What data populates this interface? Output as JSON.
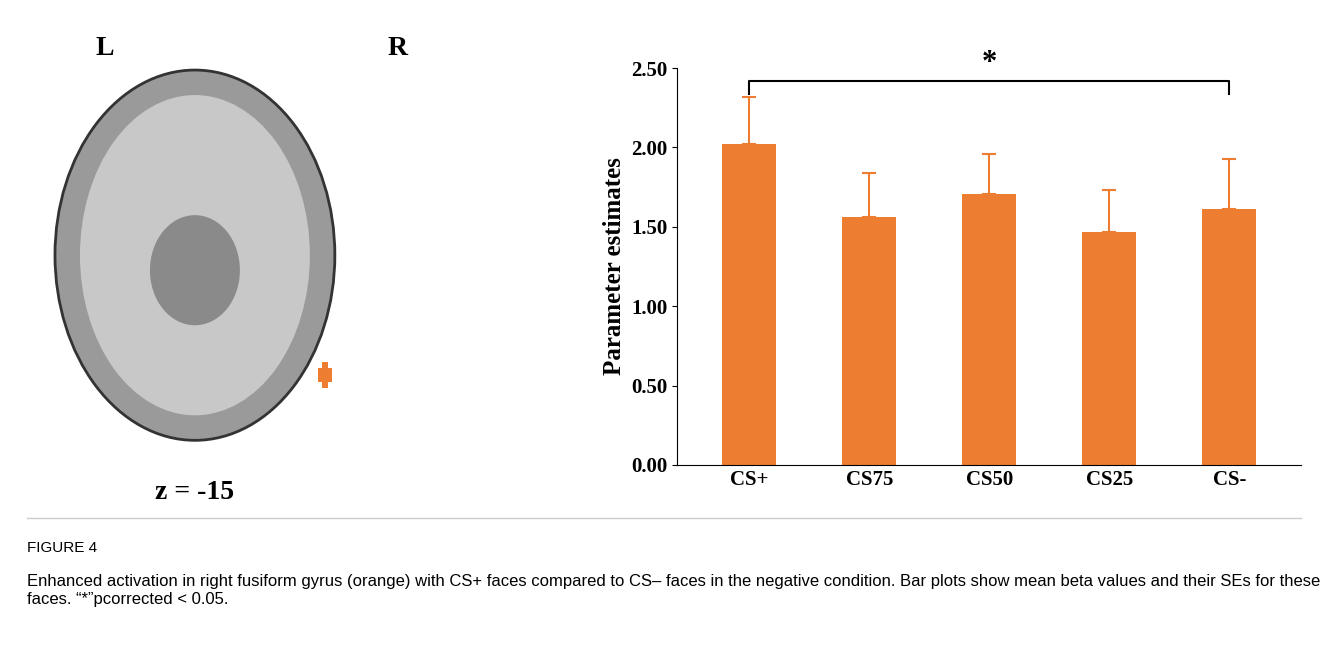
{
  "chart_data": {
    "type": "bar",
    "categories": [
      "CS+",
      "CS75",
      "CS50",
      "CS25",
      "CS-"
    ],
    "values": [
      2.02,
      1.56,
      1.71,
      1.47,
      1.61
    ],
    "errors": [
      0.3,
      0.28,
      0.25,
      0.26,
      0.32
    ],
    "color": "#ED7D31",
    "y_label": "Parameter estimates",
    "ylim": [
      0,
      2.5
    ],
    "yticks": [
      {
        "value": 0,
        "label": "0.00"
      },
      {
        "value": 0.5,
        "label": "0.50"
      },
      {
        "value": 1,
        "label": "1.00"
      },
      {
        "value": 1.5,
        "label": "1.50"
      },
      {
        "value": 2,
        "label": "2.00"
      },
      {
        "value": 2.5,
        "label": "2.50"
      }
    ],
    "annotations": [
      {
        "from": "CS+",
        "to": "CS-",
        "text": "*"
      }
    ]
  },
  "brain_image": {
    "left_label": "L",
    "right_label": "R",
    "slice_label": "z = -15"
  },
  "caption": {
    "figure_label": "FIGURE 4",
    "text": "Enhanced activation in right fusiform gyrus (orange) with CS+ faces compared to CS– faces in the negative condition. Bar plots show mean beta values and their SEs for these faces. “*”pcorrected < 0.05."
  }
}
